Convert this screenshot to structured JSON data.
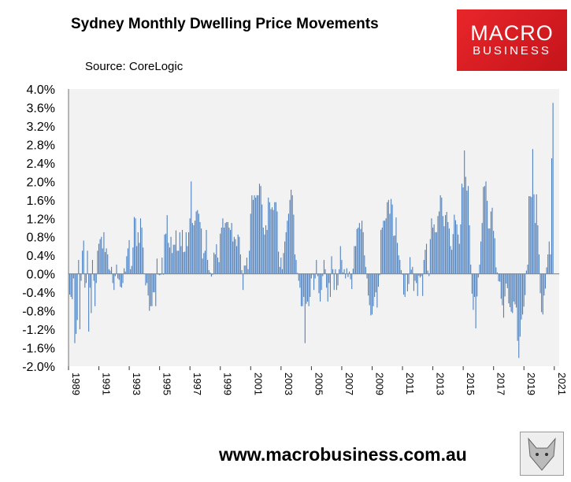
{
  "title": "Sydney Monthly Dwelling Price Movements",
  "source": "Source: CoreLogic",
  "logo": {
    "line1": "MACRO",
    "line2": "BUSINESS",
    "color": "#d71920"
  },
  "footer": "www.macrobusiness.com.au",
  "chart_data": {
    "type": "bar",
    "title": "Sydney Monthly Dwelling Price Movements",
    "first_month": "1989-01",
    "frequency": "monthly",
    "unit": "%",
    "ylim": [
      -2.0,
      4.0
    ],
    "yticks": [
      "4.0%",
      "3.6%",
      "3.2%",
      "2.8%",
      "2.4%",
      "2.0%",
      "1.6%",
      "1.2%",
      "0.8%",
      "0.4%",
      "0.0%",
      "-0.4%",
      "-0.8%",
      "-1.2%",
      "-1.6%",
      "-2.0%"
    ],
    "xticks": [
      "1989",
      "1991",
      "1993",
      "1995",
      "1997",
      "1999",
      "2001",
      "2003",
      "2005",
      "2007",
      "2009",
      "2011",
      "2013",
      "2015",
      "2017",
      "2019",
      "2021"
    ],
    "grid": false,
    "bar_color": "#4f81bd",
    "background": "#f2f2f2",
    "values": [
      -0.45,
      -0.5,
      -0.55,
      -0.1,
      -1.5,
      -1.3,
      -1.0,
      0.3,
      -1.2,
      -0.15,
      0.5,
      0.72,
      -0.3,
      -0.2,
      0.5,
      -1.25,
      -0.3,
      -0.85,
      0.3,
      -0.15,
      -0.7,
      -0.2,
      0.5,
      0.65,
      0.75,
      0.8,
      0.55,
      0.9,
      0.47,
      0.55,
      0.42,
      0.1,
      0.07,
      0.15,
      -0.2,
      -0.35,
      -0.05,
      0.2,
      -0.1,
      -0.13,
      -0.28,
      -0.3,
      -0.2,
      0.12,
      0.05,
      0.38,
      0.55,
      0.73,
      0.1,
      0.17,
      0.57,
      1.23,
      1.2,
      0.6,
      0.9,
      0.67,
      1.2,
      1.0,
      0.57,
      0.01,
      -0.25,
      -0.2,
      -0.47,
      -0.8,
      -0.7,
      -0.7,
      -0.4,
      -0.4,
      -0.7,
      0.33,
      -0.02,
      -0.03,
      -0.02,
      0.35,
      -0.02,
      0.85,
      0.87,
      1.27,
      0.67,
      0.57,
      0.8,
      0.45,
      0.63,
      0.63,
      0.94,
      0.5,
      0.5,
      0.9,
      0.6,
      0.95,
      0.47,
      0.48,
      0.9,
      0.6,
      0.9,
      1.2,
      2.0,
      1.1,
      1.05,
      1.15,
      1.35,
      1.38,
      1.3,
      1.12,
      0.98,
      0.33,
      0.45,
      0.5,
      0.95,
      0.3,
      0.08,
      0.03,
      -0.06,
      -0.02,
      0.46,
      0.42,
      0.64,
      0.35,
      0.25,
      0.87,
      1.0,
      1.2,
      1.0,
      1.1,
      1.12,
      1.12,
      1.0,
      0.95,
      1.1,
      0.7,
      0.8,
      0.75,
      0.6,
      0.85,
      0.8,
      0.42,
      0.08,
      -0.35,
      0.18,
      0.18,
      0.35,
      0.1,
      0.5,
      1.3,
      1.7,
      1.6,
      1.7,
      1.65,
      1.7,
      1.7,
      1.95,
      1.9,
      1.5,
      1.0,
      0.85,
      1.05,
      0.95,
      1.65,
      1.55,
      1.4,
      1.44,
      1.38,
      1.55,
      1.55,
      1.35,
      0.48,
      0.15,
      0.35,
      0.1,
      0.45,
      0.7,
      0.9,
      1.15,
      1.3,
      1.6,
      1.82,
      1.7,
      1.28,
      0.42,
      0.3,
      0.02,
      -0.15,
      -0.3,
      -0.7,
      -0.7,
      -0.5,
      -1.5,
      -0.65,
      -0.6,
      -0.7,
      -0.5,
      -0.1,
      -0.02,
      -0.35,
      -0.1,
      0.3,
      -0.05,
      -0.42,
      -0.6,
      -0.35,
      -0.05,
      0.3,
      0.1,
      -0.3,
      -0.6,
      -0.2,
      -0.5,
      0.38,
      0.1,
      -0.35,
      0.1,
      -0.35,
      -0.25,
      0.1,
      0.6,
      0.3,
      0.03,
      0.1,
      -0.1,
      0.12,
      -0.07,
      0.05,
      -0.12,
      -0.33,
      0.11,
      0.6,
      0.6,
      0.97,
      1.0,
      1.1,
      0.97,
      1.15,
      0.9,
      0.4,
      0.15,
      -0.1,
      -0.47,
      -0.68,
      -0.9,
      -0.88,
      -0.7,
      -0.5,
      -0.4,
      -0.73,
      -0.28,
      -0.03,
      0.95,
      1.0,
      1.15,
      1.15,
      1.2,
      1.55,
      1.6,
      1.3,
      1.62,
      1.5,
      0.82,
      0.83,
      1.22,
      0.67,
      0.4,
      0.3,
      0.08,
      -0.02,
      -0.45,
      -0.5,
      -0.02,
      -0.38,
      -0.22,
      0.36,
      0.09,
      0.15,
      -0.37,
      -0.15,
      -0.2,
      -0.48,
      -0.04,
      -0.08,
      -0.05,
      -0.48,
      0.3,
      0.52,
      0.65,
      0.07,
      -0.05,
      0.75,
      1.2,
      1.0,
      1.07,
      0.9,
      0.9,
      1.25,
      1.35,
      1.7,
      1.65,
      1.25,
      1.03,
      1.27,
      1.34,
      1.12,
      0.98,
      0.6,
      0.52,
      0.86,
      1.28,
      1.16,
      1.07,
      0.85,
      0.65,
      1.07,
      1.95,
      1.87,
      2.67,
      2.1,
      1.8,
      1.9,
      1.05,
      0.2,
      -0.43,
      -0.78,
      -0.5,
      -1.18,
      -0.49,
      -0.08,
      0.2,
      0.7,
      1.1,
      1.88,
      1.9,
      2.0,
      1.58,
      0.98,
      0.98,
      1.35,
      1.43,
      0.93,
      0.77,
      0.14,
      0.03,
      -0.16,
      -0.17,
      -0.54,
      -0.68,
      -0.95,
      -0.49,
      -0.21,
      -0.31,
      -0.64,
      -0.72,
      -0.82,
      -0.85,
      -0.6,
      -0.66,
      -0.73,
      -1.45,
      -1.82,
      -1.36,
      -0.99,
      -0.88,
      -0.71,
      -0.46,
      0.07,
      0.2,
      1.68,
      1.68,
      1.66,
      2.7,
      1.72,
      1.1,
      1.72,
      1.05,
      0.42,
      -0.42,
      -0.83,
      -0.88,
      -0.47,
      -0.32,
      0.14,
      0.42,
      0.7,
      0.42,
      2.5,
      3.7
    ]
  }
}
